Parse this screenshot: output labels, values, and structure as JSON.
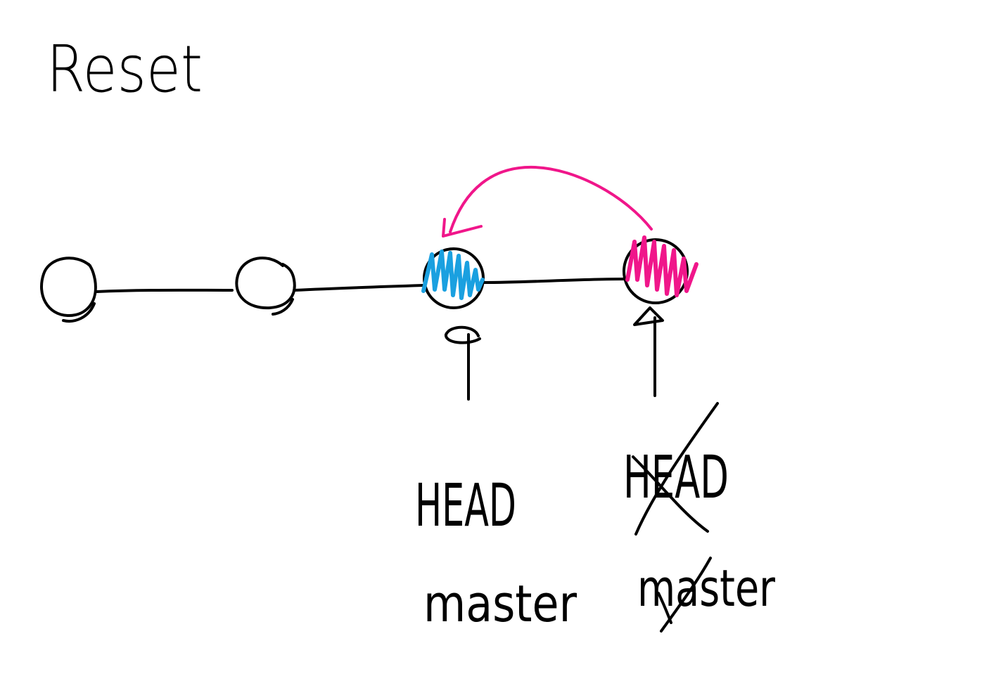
{
  "title": "Reset",
  "commits": [
    {
      "id": "c1",
      "state": "plain"
    },
    {
      "id": "c2",
      "state": "plain"
    },
    {
      "id": "c3",
      "state": "target",
      "fill_color": "#1aa0e0"
    },
    {
      "id": "c4",
      "state": "previous",
      "fill_color": "#f0168a"
    }
  ],
  "arrow": {
    "from": "c4",
    "to": "c3",
    "color": "#f0168a"
  },
  "refs": {
    "current": {
      "commit": "c3",
      "head": "HEAD",
      "branch": "master"
    },
    "previous": {
      "commit": "c4",
      "head": "HEAD",
      "branch": "master",
      "crossed_out": true
    }
  },
  "colors": {
    "ink": "#000000",
    "blue": "#1aa0e0",
    "pink": "#f0168a",
    "background": "#ffffff"
  }
}
